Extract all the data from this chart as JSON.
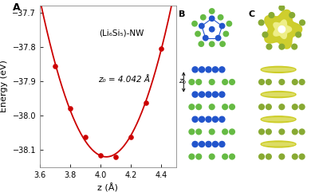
{
  "panel_a": {
    "title": "(Li₆Si₅)-NW",
    "xlabel": "z (Å)",
    "ylabel": "Energy (eV)",
    "xlim": [
      3.6,
      4.5
    ],
    "ylim": [
      -38.15,
      -37.68
    ],
    "yticks": [
      -38.1,
      -38.0,
      -37.9,
      -37.8,
      -37.7
    ],
    "xticks": [
      3.6,
      3.8,
      4.0,
      4.2,
      4.4
    ],
    "annotation": "z₀ = 4.042 Å",
    "scatter_x": [
      3.7,
      3.8,
      3.9,
      4.0,
      4.1,
      4.2,
      4.3,
      4.4
    ],
    "scatter_y": [
      -37.855,
      -37.978,
      -38.063,
      -38.115,
      -38.12,
      -38.063,
      -37.963,
      -37.805
    ],
    "curve_color": "#cc0000",
    "dot_color": "#cc0000",
    "panel_label": "A"
  },
  "li_color": "#2255cc",
  "si_color": "#66bb44",
  "iso_color": "#cccc22",
  "background_color": "#ffffff"
}
